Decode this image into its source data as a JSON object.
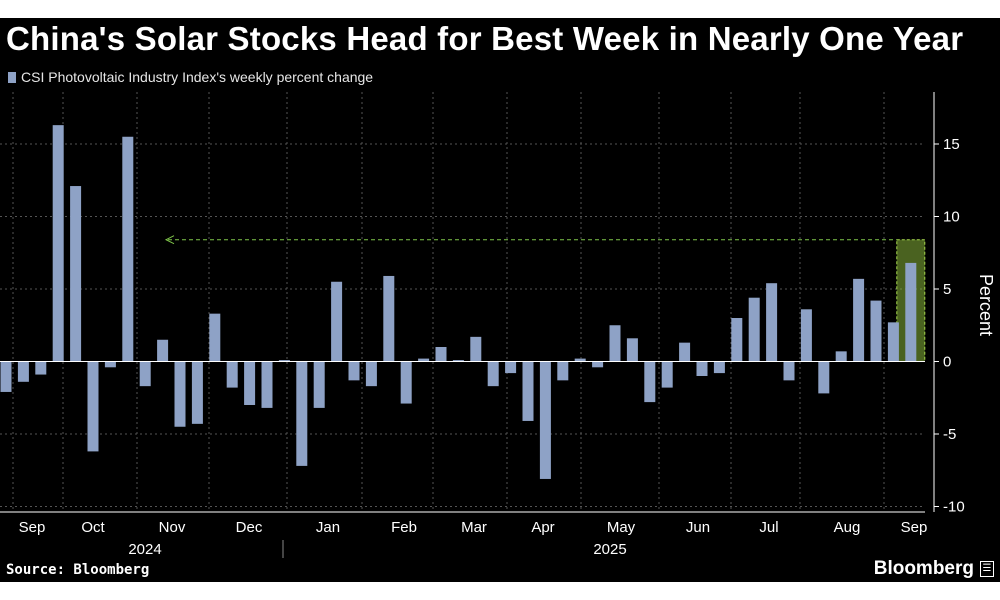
{
  "title": "China's Solar Stocks Head for Best Week in Nearly One Year",
  "legend": {
    "label": "CSI Photovoltaic Industry Index's weekly percent change"
  },
  "footer": {
    "source": "Source: Bloomberg",
    "brand": "Bloomberg"
  },
  "colors": {
    "bar": "#8ea2c6",
    "highlight_fill": "#86b33a",
    "highlight_border": "#a6d84c",
    "reference_line": "#7fc54a",
    "grid": "#555555"
  },
  "chart_data": {
    "type": "bar",
    "ylabel": "Percent",
    "ylim": [
      -10,
      18
    ],
    "yticks": [
      15,
      10,
      5,
      0,
      -5,
      -10
    ],
    "ytick_labels": [
      "15",
      "10",
      "5",
      "0",
      "-5",
      "-10"
    ],
    "month_labels": [
      "Sep",
      "Oct",
      "Nov",
      "Dec",
      "Jan",
      "Feb",
      "Mar",
      "Apr",
      "May",
      "Jun",
      "Jul",
      "Aug",
      "Sep"
    ],
    "year_labels": [
      "2024",
      "2025"
    ],
    "values": [
      -2.1,
      -1.4,
      -0.9,
      16.3,
      12.1,
      -6.2,
      -0.4,
      15.5,
      -1.7,
      1.5,
      -4.5,
      -4.3,
      3.3,
      -1.8,
      -3.0,
      -3.2,
      0.1,
      -7.2,
      -3.2,
      5.5,
      -1.3,
      -1.7,
      5.9,
      -2.9,
      0.2,
      1.0,
      0.1,
      1.7,
      -1.7,
      -0.8,
      -4.1,
      -8.1,
      -1.3,
      0.2,
      -0.4,
      2.5,
      1.6,
      -2.8,
      -1.8,
      1.3,
      -1.0,
      -0.8,
      3.0,
      4.4,
      5.4,
      -1.3,
      3.6,
      -2.2,
      0.7,
      5.7,
      4.2,
      2.7,
      6.8
    ],
    "highlight": {
      "index": 52,
      "reference_value": 8.4
    }
  }
}
